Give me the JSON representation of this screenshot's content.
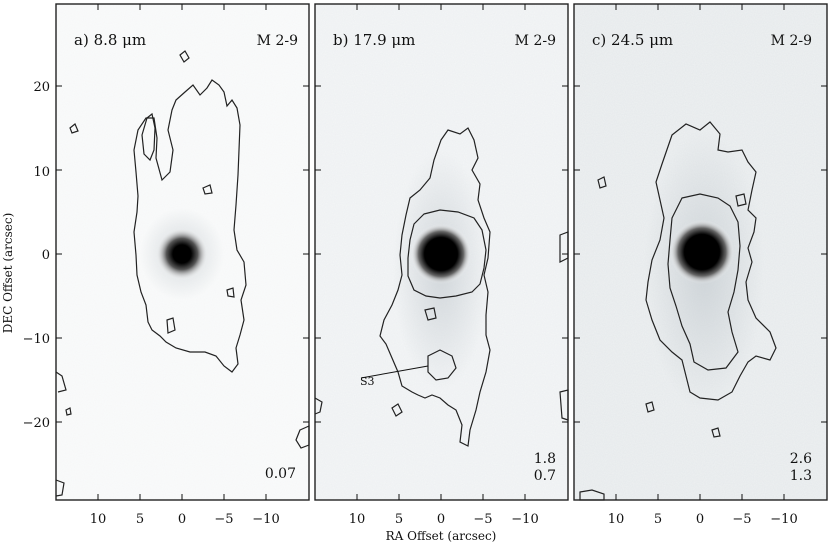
{
  "figure": {
    "y_axis_label": "DEC Offset (arcsec)",
    "x_axis_label": "RA Offset (arcsec)",
    "y_ticks": [
      "20",
      "10",
      "0",
      "−10",
      "−20"
    ],
    "x_ticks": [
      "10",
      "5",
      "0",
      "−5",
      "−10"
    ],
    "panels": [
      {
        "id": "a",
        "label": "a) 8.8 μm",
        "object": "M 2-9",
        "levels": [
          "0.07"
        ],
        "annotation": ""
      },
      {
        "id": "b",
        "label": "b) 17.9 μm",
        "object": "M 2-9",
        "levels": [
          "1.8",
          "0.7"
        ],
        "annotation": "S3"
      },
      {
        "id": "c",
        "label": "c) 24.5 μm",
        "object": "M 2-9",
        "levels": [
          "2.6",
          "1.3"
        ],
        "annotation": ""
      }
    ]
  }
}
